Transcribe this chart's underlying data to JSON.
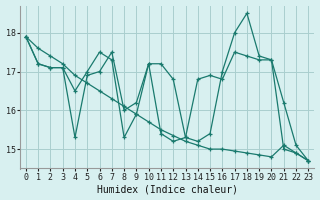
{
  "xlabel": "Humidex (Indice chaleur)",
  "bg_color": "#d8f0f0",
  "grid_color": "#aacece",
  "line_color": "#1a7a6e",
  "series": [
    {
      "x": [
        0,
        1,
        2,
        3,
        4,
        5,
        6,
        7,
        8,
        9,
        10,
        11,
        12,
        13,
        14,
        15,
        16,
        17,
        18,
        19,
        20,
        21,
        22,
        23
      ],
      "y": [
        17.9,
        17.2,
        17.1,
        17.1,
        16.5,
        17.0,
        17.5,
        17.3,
        15.3,
        15.9,
        17.2,
        17.2,
        16.8,
        15.3,
        15.2,
        15.4,
        17.0,
        18.0,
        18.5,
        17.4,
        17.3,
        16.2,
        15.1,
        14.7
      ]
    },
    {
      "x": [
        0,
        1,
        2,
        3,
        4,
        5,
        6,
        7,
        8,
        9,
        10,
        11,
        12,
        13,
        14,
        15,
        16,
        17,
        18,
        19,
        20,
        21,
        22,
        23
      ],
      "y": [
        17.9,
        17.2,
        17.1,
        17.1,
        15.3,
        16.9,
        17.0,
        17.5,
        16.0,
        16.2,
        17.2,
        15.4,
        15.2,
        15.3,
        16.8,
        16.9,
        16.8,
        17.5,
        17.4,
        17.3,
        17.3,
        15.0,
        14.9,
        14.7
      ]
    },
    {
      "x": [
        0,
        1,
        2,
        3,
        4,
        5,
        6,
        7,
        8,
        9,
        10,
        11,
        12,
        13,
        14,
        15,
        16,
        17,
        18,
        19,
        20,
        21,
        22,
        23
      ],
      "y": [
        17.9,
        17.6,
        17.4,
        17.2,
        16.9,
        16.7,
        16.5,
        16.3,
        16.1,
        15.9,
        15.7,
        15.5,
        15.35,
        15.2,
        15.1,
        15.0,
        15.0,
        14.95,
        14.9,
        14.85,
        14.8,
        15.1,
        14.9,
        14.7
      ]
    }
  ],
  "ylim": [
    14.5,
    18.7
  ],
  "xlim": [
    -0.5,
    23.5
  ],
  "yticks": [
    15,
    16,
    17,
    18
  ],
  "xticks": [
    0,
    1,
    2,
    3,
    4,
    5,
    6,
    7,
    8,
    9,
    10,
    11,
    12,
    13,
    14,
    15,
    16,
    17,
    18,
    19,
    20,
    21,
    22,
    23
  ],
  "tick_fontsize": 6,
  "label_fontsize": 7
}
